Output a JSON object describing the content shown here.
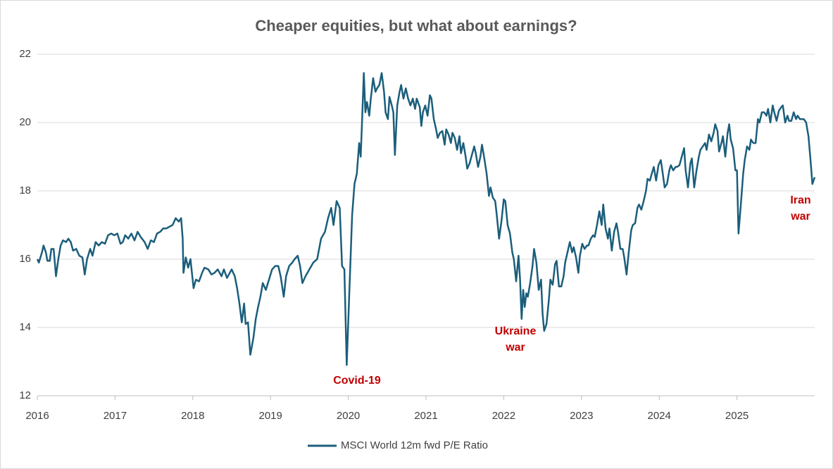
{
  "chart_data": {
    "type": "line",
    "title": "Cheaper equities, but what about earnings?",
    "xlim": [
      2016,
      2026
    ],
    "xticks": [
      2016,
      2017,
      2018,
      2019,
      2020,
      2021,
      2022,
      2023,
      2024,
      2025
    ],
    "ylim": [
      12,
      22
    ],
    "yticks": [
      12,
      14,
      16,
      18,
      20,
      22
    ],
    "grid": true,
    "legend": "bottom",
    "annotations": [
      [
        "Covid-19"
      ],
      [
        "Ukraine",
        "war"
      ],
      [
        "Iran",
        "war"
      ]
    ],
    "x": [
      2016.0,
      2016.02,
      2016.06,
      2016.08,
      2016.11,
      2016.13,
      2016.16,
      2016.18,
      2016.21,
      2016.24,
      2016.27,
      2016.3,
      2016.33,
      2016.37,
      2016.4,
      2016.43,
      2016.46,
      2016.5,
      2016.54,
      2016.58,
      2016.61,
      2016.64,
      2016.68,
      2016.71,
      2016.75,
      2016.79,
      2016.83,
      2016.87,
      2016.91,
      2016.95,
      2016.99,
      2017.03,
      2017.07,
      2017.1,
      2017.13,
      2017.17,
      2017.21,
      2017.25,
      2017.29,
      2017.33,
      2017.38,
      2017.42,
      2017.46,
      2017.5,
      2017.54,
      2017.58,
      2017.62,
      2017.66,
      2017.7,
      2017.74,
      2017.78,
      2017.82,
      2017.85,
      2017.87,
      2017.88,
      2017.91,
      2017.94,
      2017.97,
      2018.01,
      2018.04,
      2018.08,
      2018.12,
      2018.15,
      2018.2,
      2018.24,
      2018.28,
      2018.32,
      2018.37,
      2018.4,
      2018.44,
      2018.5,
      2018.54,
      2018.57,
      2018.6,
      2018.63,
      2018.66,
      2018.68,
      2018.71,
      2018.74,
      2018.78,
      2018.81,
      2018.84,
      2018.87,
      2018.9,
      2018.94,
      2018.98,
      2019.02,
      2019.06,
      2019.1,
      2019.13,
      2019.17,
      2019.2,
      2019.24,
      2019.28,
      2019.31,
      2019.35,
      2019.38,
      2019.41,
      2019.45,
      2019.5,
      2019.55,
      2019.6,
      2019.65,
      2019.7,
      2019.74,
      2019.78,
      2019.81,
      2019.85,
      2019.89,
      2019.92,
      2019.95,
      2019.98,
      2020.01,
      2020.05,
      2020.08,
      2020.11,
      2020.14,
      2020.16,
      2020.18,
      2020.2,
      2020.22,
      2020.24,
      2020.27,
      2020.29,
      2020.32,
      2020.35,
      2020.37,
      2020.4,
      2020.43,
      2020.46,
      2020.48,
      2020.51,
      2020.53,
      2020.56,
      2020.58,
      2020.6,
      2020.63,
      2020.66,
      2020.68,
      2020.71,
      2020.74,
      2020.77,
      2020.8,
      2020.83,
      2020.86,
      2020.88,
      2020.92,
      2020.94,
      2020.96,
      2020.99,
      2021.02,
      2021.05,
      2021.07,
      2021.1,
      2021.13,
      2021.15,
      2021.18,
      2021.21,
      2021.24,
      2021.26,
      2021.29,
      2021.32,
      2021.34,
      2021.37,
      2021.4,
      2021.43,
      2021.45,
      2021.48,
      2021.51,
      2021.53,
      2021.56,
      2021.59,
      2021.62,
      2021.64,
      2021.67,
      2021.7,
      2021.72,
      2021.75,
      2021.78,
      2021.81,
      2021.83,
      2021.86,
      2021.89,
      2021.91,
      2021.94,
      2021.97,
      2022.0,
      2022.02,
      2022.05,
      2022.08,
      2022.11,
      2022.13,
      2022.16,
      2022.19,
      2022.21,
      2022.23,
      2022.25,
      2022.27,
      2022.29,
      2022.31,
      2022.34,
      2022.37,
      2022.39,
      2022.42,
      2022.45,
      2022.48,
      2022.5,
      2022.52,
      2022.55,
      2022.58,
      2022.6,
      2022.63,
      2022.66,
      2022.68,
      2022.71,
      2022.74,
      2022.77,
      2022.79,
      2022.82,
      2022.85,
      2022.88,
      2022.9,
      2022.93,
      2022.96,
      2022.98,
      2023.01,
      2023.04,
      2023.07,
      2023.09,
      2023.12,
      2023.15,
      2023.17,
      2023.2,
      2023.23,
      2023.26,
      2023.28,
      2023.31,
      2023.34,
      2023.36,
      2023.39,
      2023.42,
      2023.45,
      2023.47,
      2023.5,
      2023.53,
      2023.55,
      2023.58,
      2023.61,
      2023.64,
      2023.66,
      2023.69,
      2023.72,
      2023.74,
      2023.77,
      2023.8,
      2023.83,
      2023.85,
      2023.88,
      2023.91,
      2023.93,
      2023.96,
      2023.99,
      2024.02,
      2024.04,
      2024.07,
      2024.1,
      2024.13,
      2024.15,
      2024.18,
      2024.21,
      2024.23,
      2024.26,
      2024.29,
      2024.32,
      2024.34,
      2024.37,
      2024.4,
      2024.42,
      2024.45,
      2024.48,
      2024.51,
      2024.53,
      2024.56,
      2024.59,
      2024.61,
      2024.64,
      2024.67,
      2024.7,
      2024.72,
      2024.75,
      2024.77,
      2024.8,
      2024.82,
      2024.85,
      2024.88,
      2024.9,
      2024.92,
      2024.95,
      2024.98,
      2025.0,
      2025.02,
      2025.05,
      2025.08,
      2025.1,
      2025.13,
      2025.16,
      2025.18,
      2025.21,
      2025.24,
      2025.27,
      2025.29,
      2025.32,
      2025.35,
      2025.38,
      2025.4,
      2025.43,
      2025.46,
      2025.48,
      2025.51,
      2025.54,
      2025.57,
      2025.59,
      2025.62,
      2025.65,
      2025.67,
      2025.7,
      2025.73,
      2025.76,
      2025.78,
      2025.81,
      2025.84,
      2025.86,
      2025.89,
      2025.92,
      2025.95,
      2025.97,
      2026.0
    ],
    "series": [
      {
        "name": "MSCI World 12m fwd P/E Ratio",
        "color": "#1b5e7b",
        "values": [
          16.0,
          15.9,
          16.2,
          16.4,
          16.2,
          15.95,
          15.95,
          16.3,
          16.3,
          15.5,
          16.0,
          16.4,
          16.55,
          16.5,
          16.6,
          16.5,
          16.25,
          16.3,
          16.1,
          16.05,
          15.55,
          16.0,
          16.3,
          16.1,
          16.5,
          16.4,
          16.5,
          16.45,
          16.7,
          16.75,
          16.7,
          16.75,
          16.45,
          16.5,
          16.7,
          16.6,
          16.75,
          16.55,
          16.8,
          16.65,
          16.5,
          16.3,
          16.55,
          16.5,
          16.75,
          16.8,
          16.9,
          16.9,
          16.95,
          17.0,
          17.2,
          17.1,
          17.2,
          16.6,
          15.6,
          16.05,
          15.75,
          16.0,
          15.15,
          15.4,
          15.35,
          15.6,
          15.75,
          15.7,
          15.55,
          15.6,
          15.7,
          15.5,
          15.7,
          15.45,
          15.7,
          15.5,
          15.15,
          14.7,
          14.15,
          14.7,
          14.1,
          14.15,
          13.2,
          13.7,
          14.25,
          14.6,
          14.9,
          15.3,
          15.1,
          15.4,
          15.7,
          15.8,
          15.8,
          15.5,
          14.9,
          15.5,
          15.8,
          15.9,
          16.0,
          16.1,
          15.8,
          15.3,
          15.5,
          15.7,
          15.9,
          16.0,
          16.6,
          16.8,
          17.2,
          17.5,
          17.0,
          17.7,
          17.5,
          15.8,
          15.7,
          12.9,
          14.8,
          17.3,
          18.2,
          18.5,
          19.4,
          19.0,
          20.2,
          21.45,
          20.3,
          20.6,
          20.2,
          20.7,
          21.3,
          20.9,
          21.0,
          21.1,
          21.45,
          20.9,
          20.3,
          20.1,
          20.75,
          20.5,
          20.3,
          19.05,
          20.5,
          20.9,
          21.1,
          20.7,
          21.0,
          20.7,
          20.5,
          20.7,
          20.4,
          20.7,
          20.45,
          19.9,
          20.3,
          20.5,
          20.2,
          20.8,
          20.7,
          20.1,
          19.8,
          19.55,
          19.7,
          19.75,
          19.35,
          19.8,
          19.65,
          19.4,
          19.7,
          19.55,
          19.2,
          19.6,
          19.1,
          19.4,
          19.0,
          18.65,
          18.8,
          19.05,
          19.3,
          19.1,
          18.7,
          19.0,
          19.35,
          18.95,
          18.5,
          17.85,
          18.1,
          17.8,
          17.7,
          17.3,
          16.6,
          17.1,
          17.75,
          17.7,
          17.0,
          16.75,
          16.2,
          16.0,
          15.35,
          16.1,
          15.4,
          14.25,
          15.1,
          14.6,
          15.0,
          14.9,
          15.3,
          15.8,
          16.3,
          15.9,
          15.1,
          15.4,
          14.4,
          13.9,
          14.1,
          14.8,
          15.4,
          15.25,
          15.85,
          15.95,
          15.2,
          15.2,
          15.5,
          15.9,
          16.2,
          16.5,
          16.2,
          16.35,
          16.05,
          15.6,
          16.1,
          16.45,
          16.3,
          16.4,
          16.4,
          16.6,
          16.7,
          16.65,
          17.0,
          17.4,
          17.0,
          17.6,
          16.9,
          16.6,
          16.9,
          16.25,
          16.8,
          17.05,
          16.8,
          16.3,
          16.3,
          16.05,
          15.55,
          16.25,
          16.85,
          17.0,
          17.05,
          17.5,
          17.6,
          17.45,
          17.7,
          18.0,
          18.35,
          18.3,
          18.55,
          18.7,
          18.3,
          18.75,
          18.9,
          18.6,
          18.1,
          18.2,
          18.6,
          18.75,
          18.6,
          18.7,
          18.7,
          18.75,
          19.0,
          19.25,
          18.6,
          18.1,
          18.8,
          18.95,
          18.1,
          18.6,
          19.0,
          19.2,
          19.3,
          19.4,
          19.2,
          19.65,
          19.45,
          19.7,
          19.95,
          19.75,
          19.15,
          19.4,
          19.6,
          19.0,
          19.7,
          19.95,
          19.5,
          19.25,
          18.6,
          18.6,
          16.75,
          17.6,
          18.5,
          18.9,
          19.3,
          19.2,
          19.5,
          19.4,
          19.4,
          20.1,
          20.0,
          20.3,
          20.3,
          20.2,
          20.4,
          20.0,
          20.5,
          20.3,
          20.05,
          20.35,
          20.45,
          20.5,
          20.0,
          20.2,
          20.05,
          20.05,
          20.3,
          20.1,
          20.2,
          20.1,
          20.1,
          20.1,
          20.0,
          19.6,
          18.8,
          18.2,
          18.4
        ]
      }
    ]
  }
}
